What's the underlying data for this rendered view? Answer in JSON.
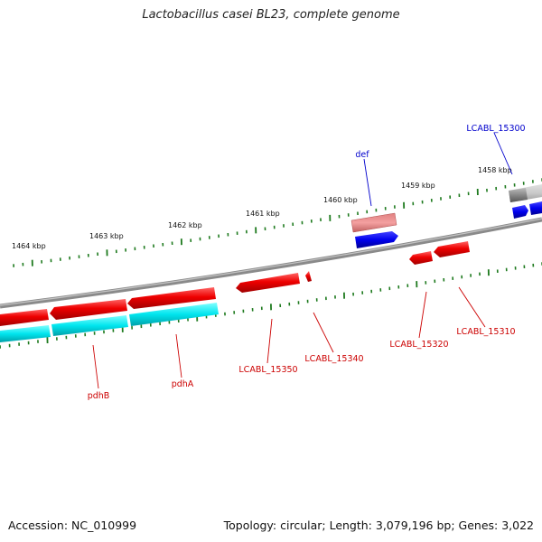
{
  "title": "Lactobacillus casei BL23, complete genome",
  "accession": "Accession: NC_010999",
  "topology": "Topology: circular; Length: 3,079,196 bp; Genes: 3,022",
  "colors": {
    "forward_cds": "#ee0000",
    "forward_cds_faded": "#f08080",
    "reverse_cds": "#0000ee",
    "reverse_rna": "#00e5ee",
    "gene_grey": "#888888",
    "tick": "#1e7a1e",
    "label_red": "#cc0000",
    "label_blue": "#0000cc"
  },
  "ticks": {
    "upper": [
      "1464 kbp",
      "1463 kbp",
      "1462 kbp",
      "1461 kbp",
      "1460 kbp",
      "1459 kbp",
      "1458 kbp"
    ]
  },
  "genes": {
    "upper": [
      {
        "label": "def",
        "color": "blue"
      },
      {
        "label": "LCABL_15300",
        "color": "blue"
      }
    ],
    "lower": [
      {
        "label": "pdhB",
        "color": "red"
      },
      {
        "label": "pdhA",
        "color": "red"
      },
      {
        "label": "LCABL_15350",
        "color": "red"
      },
      {
        "label": "LCABL_15340",
        "color": "red"
      },
      {
        "label": "LCABL_15320",
        "color": "red"
      },
      {
        "label": "LCABL_15310",
        "color": "red"
      }
    ]
  }
}
